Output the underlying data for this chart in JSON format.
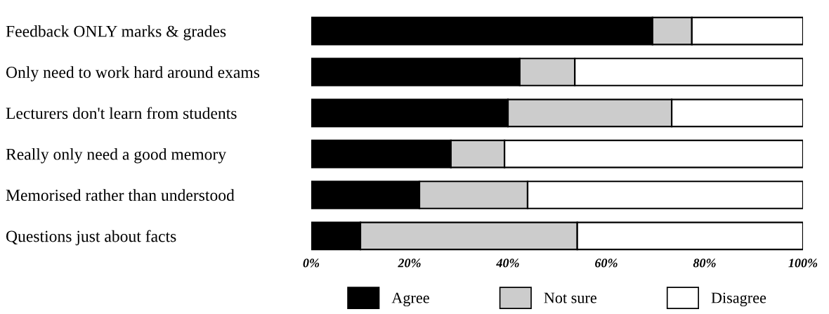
{
  "chart_data": {
    "type": "bar",
    "orientation": "horizontal",
    "stacked": true,
    "categories": [
      "Feedback ONLY marks & grades",
      "Only need to work hard around exams",
      "Lecturers don't learn from students",
      "Really only need a good memory",
      "Memorised rather than understood",
      "Questions just about facts"
    ],
    "series": [
      {
        "name": "Agree",
        "color": "#000000",
        "values": [
          69.4,
          42.4,
          40.0,
          28.4,
          22.0,
          10.0
        ]
      },
      {
        "name": "Not sure",
        "color": "#cccccc",
        "values": [
          8.0,
          11.2,
          33.3,
          10.9,
          22.0,
          44.1
        ]
      },
      {
        "name": "Disagree",
        "color": "#ffffff",
        "values": [
          22.6,
          46.4,
          26.7,
          60.7,
          56.0,
          45.9
        ]
      }
    ],
    "xlim": [
      0,
      100
    ],
    "xticks": [
      {
        "value": 0,
        "label": "0%"
      },
      {
        "value": 20,
        "label": "20%"
      },
      {
        "value": 40,
        "label": "40%"
      },
      {
        "value": 60,
        "label": "60%"
      },
      {
        "value": 80,
        "label": "80%"
      },
      {
        "value": 100,
        "label": "100%"
      }
    ],
    "grid": false,
    "legend": "bottom"
  }
}
